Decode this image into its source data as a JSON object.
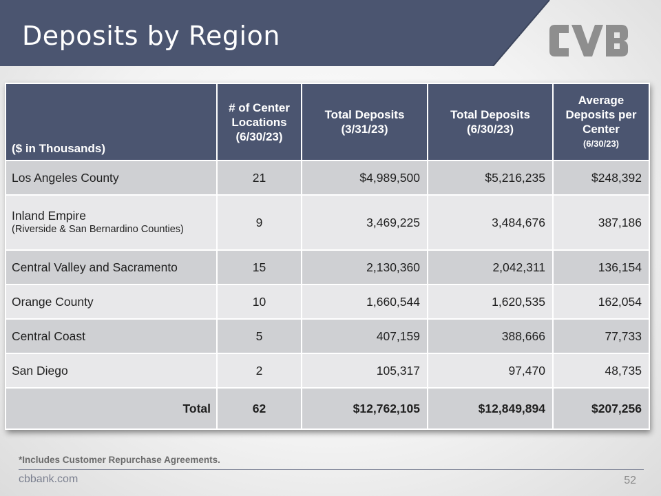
{
  "header": {
    "title": "Deposits by Region",
    "banner_color": "#4b5570"
  },
  "logo": {
    "name": "cvb-logo-icon",
    "text": "CVB",
    "color": "#8e8e8e"
  },
  "table": {
    "columns": [
      {
        "label": "($ in Thousands)"
      },
      {
        "label": "# of Center Locations (6/30/23)"
      },
      {
        "label": "Total Deposits (3/31/23)"
      },
      {
        "label": "Total Deposits (6/30/23)"
      },
      {
        "label": "Average Deposits per Center",
        "sub": "(6/30/23)"
      }
    ],
    "rows": [
      {
        "region": "Los Angeles County",
        "region_sub": "",
        "centers": "21",
        "dep_q1": "$4,989,500",
        "dep_q2": "$5,216,235",
        "avg": "$248,392"
      },
      {
        "region": "Inland Empire",
        "region_sub": "(Riverside & San Bernardino Counties)",
        "centers": "9",
        "dep_q1": "3,469,225",
        "dep_q2": "3,484,676",
        "avg": "387,186"
      },
      {
        "region": "Central Valley and Sacramento",
        "region_sub": "",
        "centers": "15",
        "dep_q1": "2,130,360",
        "dep_q2": "2,042,311",
        "avg": "136,154"
      },
      {
        "region": "Orange County",
        "region_sub": "",
        "centers": "10",
        "dep_q1": "1,660,544",
        "dep_q2": "1,620,535",
        "avg": "162,054"
      },
      {
        "region": "Central Coast",
        "region_sub": "",
        "centers": "5",
        "dep_q1": "407,159",
        "dep_q2": "388,666",
        "avg": "77,733"
      },
      {
        "region": "San Diego",
        "region_sub": "",
        "centers": "2",
        "dep_q1": "105,317",
        "dep_q2": "97,470",
        "avg": "48,735"
      }
    ],
    "total": {
      "label": "Total",
      "centers": "62",
      "dep_q1": "$12,762,105",
      "dep_q2": "$12,849,894",
      "avg": "$207,256"
    }
  },
  "footnote": "*Includes Customer Repurchase Agreements.",
  "footer": {
    "site": "cbbank.com",
    "page": "52"
  }
}
